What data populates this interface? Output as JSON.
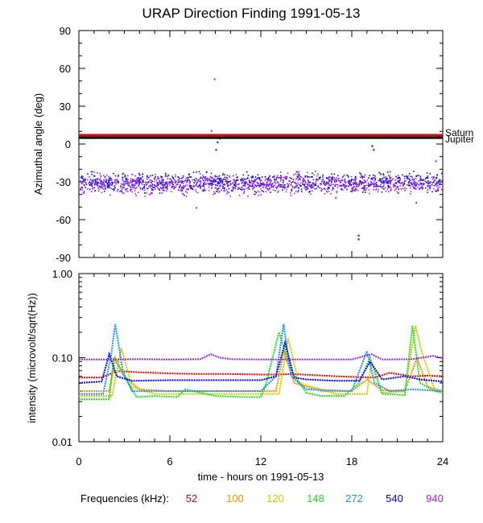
{
  "chart_data": [
    {
      "type": "scatter",
      "title": "URAP Direction Finding  1991-05-13",
      "xlabel": "",
      "ylabel": "Azimuthal angle (deg)",
      "xlim": [
        0,
        24
      ],
      "ylim": [
        -90,
        90
      ],
      "yticks": [
        {
          "value": 90,
          "label": "90"
        },
        {
          "value": 60,
          "label": "60"
        },
        {
          "value": 30,
          "label": "30"
        },
        {
          "value": 0,
          "label": "0"
        },
        {
          "value": -30,
          "label": "-30"
        },
        {
          "value": -60,
          "label": "-60"
        },
        {
          "value": -90,
          "label": "-90"
        }
      ],
      "reference_lines": [
        {
          "name": "Saturn",
          "value": 7,
          "color": "#e00000"
        },
        {
          "name": "Jupiter",
          "value": 5,
          "color": "#000000"
        }
      ],
      "series": [
        {
          "name": "540 kHz",
          "color": "#0000ee",
          "band_center": -30,
          "band_spread": 8
        },
        {
          "name": "940 kHz",
          "color": "#a020f0",
          "band_center": -31,
          "band_spread": 9
        }
      ],
      "outliers": [
        {
          "x": 8.9,
          "y": 52,
          "color": "#a020f0"
        },
        {
          "x": 9.1,
          "y": 2,
          "color": "#0000ee"
        },
        {
          "x": 9.25,
          "y": 5,
          "color": "#0000ee"
        },
        {
          "x": 9.0,
          "y": -4,
          "color": "#0000ee"
        },
        {
          "x": 8.7,
          "y": 11,
          "color": "#a020f0"
        },
        {
          "x": 6.9,
          "y": -40,
          "color": "#a020f0"
        },
        {
          "x": 7.7,
          "y": -50,
          "color": "#a020f0"
        },
        {
          "x": 16.9,
          "y": -42,
          "color": "#a020f0"
        },
        {
          "x": 18.4,
          "y": -72,
          "color": "#0000ee"
        },
        {
          "x": 18.4,
          "y": -75,
          "color": "#0000ee"
        },
        {
          "x": 19.3,
          "y": -1,
          "color": "#0000ee"
        },
        {
          "x": 19.4,
          "y": -4,
          "color": "#0000ee"
        },
        {
          "x": 23.5,
          "y": -13,
          "color": "#a020f0"
        },
        {
          "x": 22.2,
          "y": -46,
          "color": "#a020f0"
        }
      ]
    },
    {
      "type": "line",
      "xlabel": "time - hours on 1991-05-13",
      "ylabel": "intensity (microvolt/sqrt(Hz))",
      "xlim": [
        0,
        24
      ],
      "ylim": [
        0.01,
        1.0
      ],
      "yscale": "log",
      "yticks": [
        {
          "value": 1.0,
          "label": "1.00"
        },
        {
          "value": 0.1,
          "label": "0.10"
        },
        {
          "value": 0.01,
          "label": "0.01"
        }
      ],
      "xticks": [
        {
          "value": 0,
          "label": "0"
        },
        {
          "value": 6,
          "label": "6"
        },
        {
          "value": 12,
          "label": "12"
        },
        {
          "value": 18,
          "label": "18"
        },
        {
          "value": 24,
          "label": "24"
        }
      ],
      "series": [
        {
          "name": "52",
          "color": "#e00000",
          "x": [
            0,
            1.5,
            2.5,
            4,
            6,
            8,
            10,
            12,
            13,
            14,
            15.5,
            17,
            18,
            19.5,
            20.5,
            22,
            23,
            24
          ],
          "values": [
            0.058,
            0.058,
            0.069,
            0.067,
            0.065,
            0.064,
            0.064,
            0.063,
            0.063,
            0.064,
            0.062,
            0.06,
            0.059,
            0.058,
            0.066,
            0.06,
            0.061,
            0.06
          ]
        },
        {
          "name": "100",
          "color": "#ff8c00",
          "x": [
            0,
            2,
            2.4,
            3,
            4,
            6,
            8,
            10,
            12,
            13,
            13.5,
            14.2,
            16,
            18,
            19,
            20,
            21.5,
            22.3,
            23,
            24
          ],
          "values": [
            0.04,
            0.04,
            0.1,
            0.06,
            0.042,
            0.04,
            0.04,
            0.04,
            0.04,
            0.04,
            0.12,
            0.05,
            0.04,
            0.04,
            0.055,
            0.041,
            0.04,
            0.1,
            0.045,
            0.04
          ]
        },
        {
          "name": "120",
          "color": "#c8c800",
          "x": [
            0,
            2.2,
            2.8,
            3.5,
            5,
            8,
            11,
            13.2,
            13.8,
            14.5,
            17,
            19,
            19.3,
            20,
            21.5,
            22.2,
            22.6,
            23.5,
            24
          ],
          "values": [
            0.035,
            0.035,
            0.13,
            0.045,
            0.037,
            0.037,
            0.037,
            0.037,
            0.17,
            0.05,
            0.037,
            0.037,
            0.09,
            0.038,
            0.04,
            0.24,
            0.12,
            0.04,
            0.04
          ]
        },
        {
          "name": "148",
          "color": "#22dd22",
          "x": [
            0,
            2,
            2.3,
            3,
            3.8,
            5,
            6.5,
            7,
            9,
            11,
            12,
            12.3,
            13.2,
            14,
            15,
            16,
            17.5,
            18.5,
            19.2,
            20,
            21.5,
            22,
            22.5,
            23.5,
            24
          ],
          "values": [
            0.032,
            0.032,
            0.1,
            0.06,
            0.034,
            0.035,
            0.034,
            0.042,
            0.035,
            0.034,
            0.034,
            0.046,
            0.2,
            0.07,
            0.038,
            0.035,
            0.035,
            0.05,
            0.1,
            0.037,
            0.036,
            0.24,
            0.05,
            0.04,
            0.038
          ]
        },
        {
          "name": "272",
          "color": "#1e90ff",
          "x": [
            0,
            1.6,
            2.1,
            2.4,
            2.9,
            3.5,
            5,
            7,
            9,
            12,
            13,
            13.5,
            14,
            15,
            18,
            19,
            19.5,
            20.5,
            22,
            24
          ],
          "values": [
            0.037,
            0.037,
            0.1,
            0.25,
            0.07,
            0.04,
            0.04,
            0.04,
            0.04,
            0.04,
            0.06,
            0.25,
            0.06,
            0.042,
            0.04,
            0.12,
            0.05,
            0.04,
            0.042,
            0.04
          ]
        },
        {
          "name": "540",
          "color": "#0000ee",
          "x": [
            0,
            1.5,
            2,
            2.5,
            3.5,
            6,
            8,
            10,
            12,
            13,
            13.6,
            14.2,
            15,
            17,
            18.5,
            19.2,
            20,
            21.5,
            22.5,
            24
          ],
          "values": [
            0.05,
            0.052,
            0.11,
            0.06,
            0.053,
            0.054,
            0.054,
            0.054,
            0.054,
            0.06,
            0.15,
            0.058,
            0.055,
            0.053,
            0.053,
            0.09,
            0.055,
            0.06,
            0.055,
            0.052
          ]
        },
        {
          "name": "940",
          "color": "#a020f0",
          "x": [
            0,
            2,
            4,
            6,
            8,
            8.7,
            9.3,
            10,
            12,
            14,
            16,
            18,
            19.3,
            20,
            22,
            23.4,
            24
          ],
          "values": [
            0.095,
            0.095,
            0.096,
            0.095,
            0.096,
            0.11,
            0.1,
            0.096,
            0.095,
            0.095,
            0.095,
            0.095,
            0.11,
            0.095,
            0.096,
            0.105,
            0.098
          ]
        }
      ]
    }
  ],
  "legend": {
    "label": "Frequencies (kHz):",
    "items": [
      {
        "text": "52",
        "color": "#e00000"
      },
      {
        "text": "100",
        "color": "#ff8c00"
      },
      {
        "text": "120",
        "color": "#c8c800"
      },
      {
        "text": "148",
        "color": "#22dd22"
      },
      {
        "text": "272",
        "color": "#1e90ff"
      },
      {
        "text": "540",
        "color": "#0000ee"
      },
      {
        "text": "940",
        "color": "#a020f0"
      }
    ]
  }
}
